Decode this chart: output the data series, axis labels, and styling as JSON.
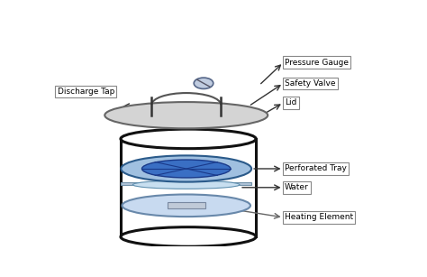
{
  "bg_color": "#ffffff",
  "lid_fill": "#d4d4d4",
  "lid_edge": "#666666",
  "cylinder_fill": "#ffffff",
  "cylinder_edge": "#111111",
  "tray_fill": "#3a6fc4",
  "tray_edge": "#1a3a8a",
  "tray_outer_fill": "#a0c0e0",
  "tray_outer_edge": "#2a5a8a",
  "water_fill": "#c8dff0",
  "water_edge": "#6090b0",
  "heating_fill": "#c8daf0",
  "heating_edge": "#6888aa",
  "gauge_fill": "#c0cce0",
  "gauge_edge": "#556688",
  "label_bg": "#ffffff",
  "label_edge": "#888888",
  "arrow_color": "#333333",
  "labels": {
    "pressure_gauge": "Pressure Gauge",
    "safety_valve": "Safety Valve",
    "lid": "Lid",
    "discharge_tap": "Discharge Tap",
    "perforated_tray": "Perforated Tray",
    "water": "Water",
    "heating_element": "Heating Element"
  },
  "font_size": 6.5
}
